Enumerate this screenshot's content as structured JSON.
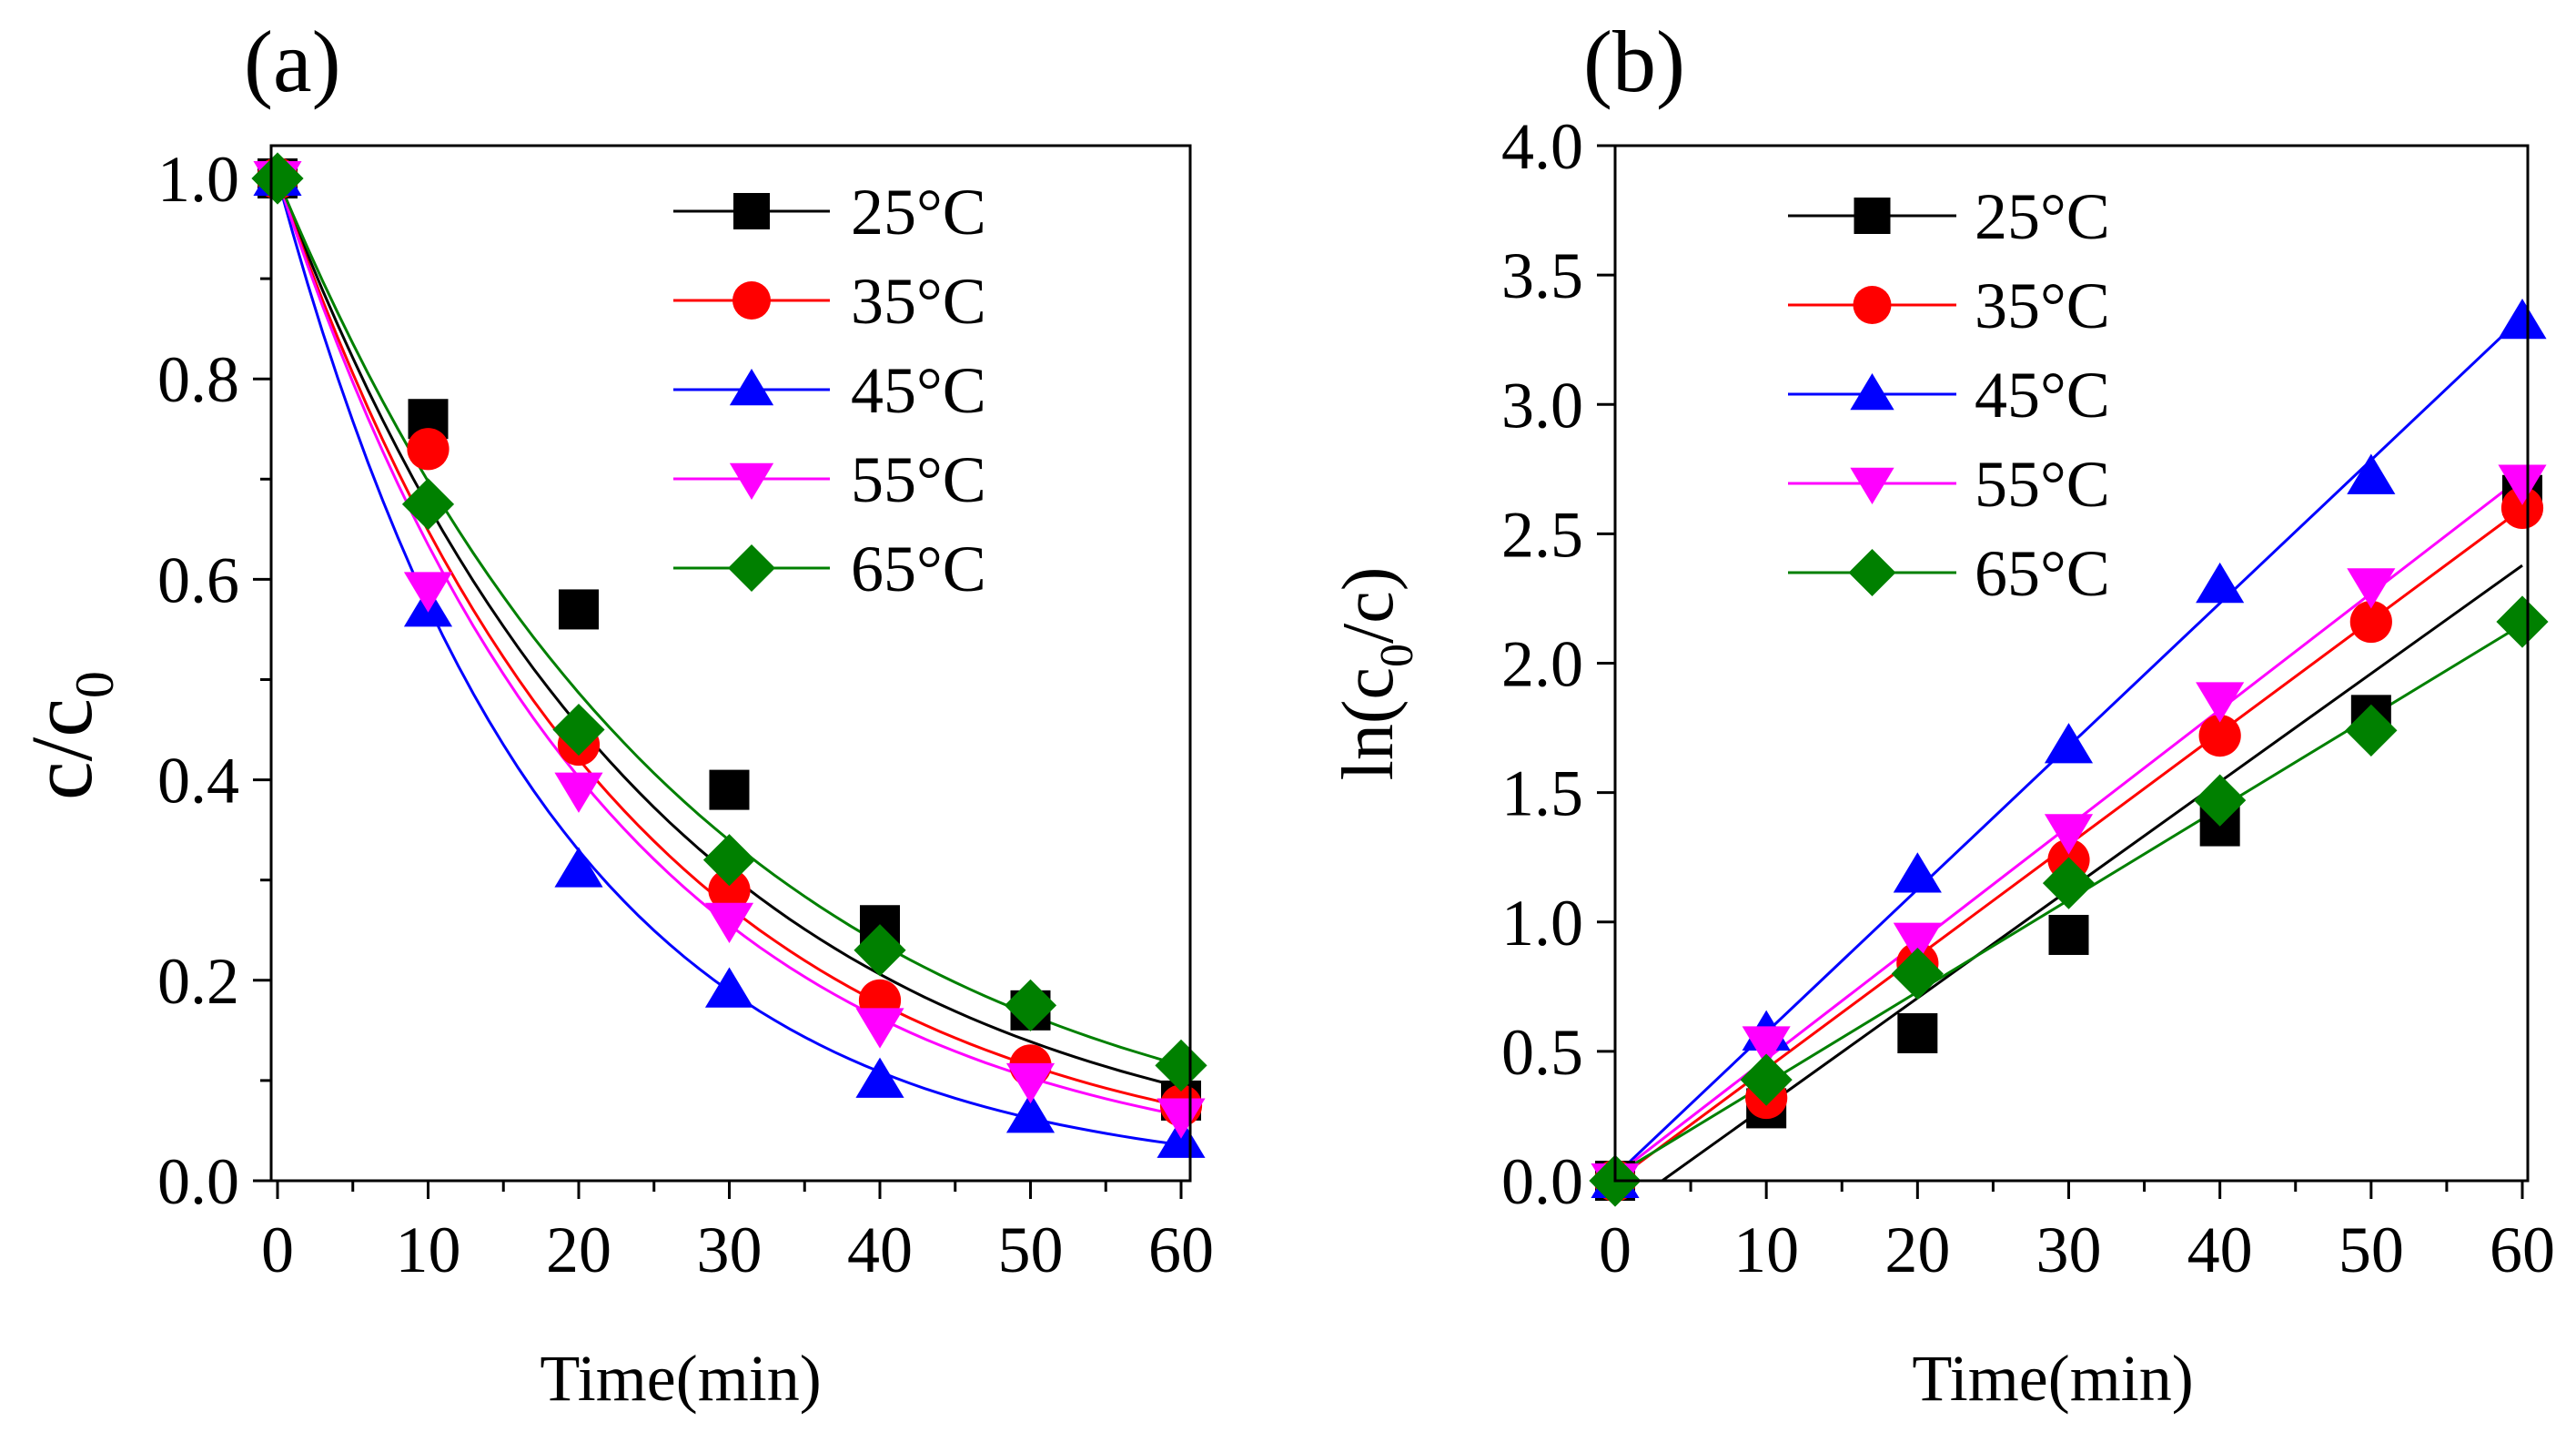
{
  "chart_data": [
    {
      "type": "line",
      "panel_label": "(a)",
      "xlabel": "Time(min)",
      "ylabel": "c/c",
      "ylabel_sub": "0",
      "xlim": [
        0,
        60
      ],
      "ylim": [
        0,
        1.0
      ],
      "xticks": [
        "0",
        "10",
        "20",
        "30",
        "40",
        "50",
        "60"
      ],
      "yticks": [
        "0.0",
        "0.2",
        "0.4",
        "0.6",
        "0.8",
        "1.0"
      ],
      "x": [
        0,
        10,
        20,
        30,
        40,
        50,
        60
      ],
      "legend_position": "top-right",
      "series": [
        {
          "name": "25°C",
          "color": "#000000",
          "marker": "square",
          "values": [
            1.0,
            0.76,
            0.57,
            0.39,
            0.255,
            0.17,
            0.08
          ],
          "fit_k": 0.0395
        },
        {
          "name": "35°C",
          "color": "#ff0000",
          "marker": "circle",
          "values": [
            1.0,
            0.73,
            0.435,
            0.29,
            0.18,
            0.115,
            0.075
          ],
          "fit_k": 0.0433
        },
        {
          "name": "45°C",
          "color": "#0000ff",
          "marker": "triangle-up",
          "values": [
            1.0,
            0.57,
            0.31,
            0.19,
            0.1,
            0.065,
            0.04
          ],
          "fit_k": 0.0555
        },
        {
          "name": "55°C",
          "color": "#ff00ff",
          "marker": "triangle-down",
          "values": [
            1.0,
            0.59,
            0.39,
            0.26,
            0.155,
            0.1,
            0.065
          ],
          "fit_k": 0.0455
        },
        {
          "name": "65°C",
          "color": "#008000",
          "marker": "diamond",
          "values": [
            1.0,
            0.675,
            0.45,
            0.32,
            0.23,
            0.175,
            0.115
          ],
          "fit_k": 0.036
        }
      ]
    },
    {
      "type": "scatter",
      "panel_label": "(b)",
      "xlabel": "Time(min)",
      "ylabel": "ln(c",
      "ylabel_sub": "0",
      "ylabel_end": "/c)",
      "xlim": [
        0,
        60
      ],
      "ylim": [
        0,
        4.0
      ],
      "xticks": [
        "0",
        "10",
        "20",
        "30",
        "40",
        "50",
        "60"
      ],
      "yticks": [
        "0.0",
        "0.5",
        "1.0",
        "1.5",
        "2.0",
        "2.5",
        "3.0",
        "3.5",
        "4.0"
      ],
      "x": [
        0,
        10,
        20,
        30,
        40,
        50,
        60
      ],
      "legend_position": "top-left",
      "series": [
        {
          "name": "25°C",
          "color": "#000000",
          "marker": "square",
          "values": [
            0.0,
            0.28,
            0.57,
            0.95,
            1.37,
            1.8,
            2.65
          ],
          "fit": {
            "slope": 0.0418,
            "intercept": -0.13
          }
        },
        {
          "name": "35°C",
          "color": "#ff0000",
          "marker": "circle",
          "values": [
            0.0,
            0.32,
            0.84,
            1.24,
            1.72,
            2.16,
            2.6
          ],
          "fit": {
            "slope": 0.0433,
            "intercept": 0.0
          }
        },
        {
          "name": "45°C",
          "color": "#0000ff",
          "marker": "triangle-up",
          "values": [
            0.0,
            0.57,
            1.18,
            1.68,
            2.3,
            2.72,
            3.32
          ],
          "fit": {
            "slope": 0.0553,
            "intercept": 0.02
          }
        },
        {
          "name": "55°C",
          "color": "#ff00ff",
          "marker": "triangle-down",
          "values": [
            0.0,
            0.53,
            0.93,
            1.35,
            1.86,
            2.3,
            2.7
          ],
          "fit": {
            "slope": 0.045,
            "intercept": 0.02
          }
        },
        {
          "name": "65°C",
          "color": "#008000",
          "marker": "diamond",
          "values": [
            0.0,
            0.39,
            0.8,
            1.15,
            1.47,
            1.74,
            2.16
          ],
          "fit": {
            "slope": 0.0355,
            "intercept": 0.02
          }
        }
      ]
    }
  ]
}
